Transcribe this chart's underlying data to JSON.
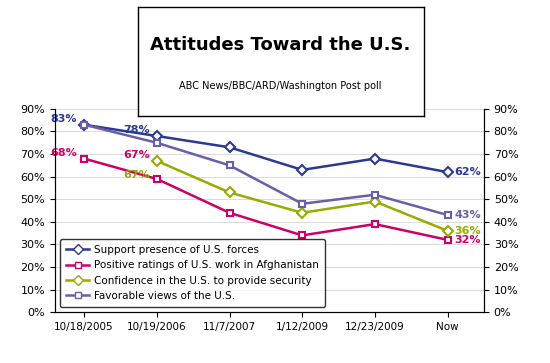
{
  "title": "Attitudes Toward the U.S.",
  "subtitle": "ABC News/BBC/ARD/Washington Post poll",
  "x_labels": [
    "10/18/2005",
    "10/19/2006",
    "11/7/2007",
    "1/12/2009",
    "12/23/2009",
    "Now"
  ],
  "series": {
    "support": {
      "label": "Support presence of U.S. forces",
      "values": [
        83,
        78,
        73,
        63,
        68,
        62
      ],
      "color": "#2b3990",
      "marker": "D"
    },
    "positive": {
      "label": "Positive ratings of U.S. work in Afghanistan",
      "values": [
        68,
        59,
        44,
        34,
        39,
        32
      ],
      "color": "#cc0066",
      "marker": "s"
    },
    "confidence": {
      "label": "Confidence in the U.S. to provide security",
      "values": [
        null,
        67,
        53,
        44,
        49,
        36
      ],
      "color": "#99aa00",
      "marker": "D"
    },
    "favorable": {
      "label": "Favorable views of the U.S.",
      "values": [
        83,
        75,
        65,
        48,
        52,
        43
      ],
      "color": "#6b5ea8",
      "marker": "s"
    }
  },
  "ylim": [
    0,
    90
  ],
  "yticks": [
    0,
    10,
    20,
    30,
    40,
    50,
    60,
    70,
    80,
    90
  ],
  "background_color": "#ffffff",
  "grid_color": "#cccccc",
  "figsize": [
    5.5,
    3.63
  ],
  "dpi": 100
}
